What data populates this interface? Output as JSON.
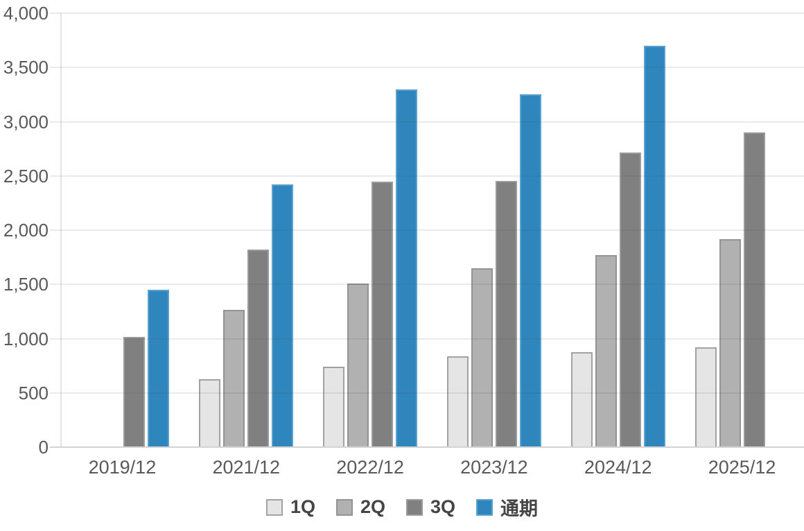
{
  "chart_data": {
    "type": "bar",
    "title": "",
    "xlabel": "",
    "ylabel": "",
    "categories": [
      "2019/12",
      "2021/12",
      "2022/12",
      "2023/12",
      "2024/12",
      "2025/12"
    ],
    "series": [
      {
        "key": "1q",
        "name": "1Q",
        "color": "#E5E5E5",
        "stroke": "#A2A2A2",
        "values": [
          null,
          625,
          740,
          835,
          875,
          920
        ]
      },
      {
        "key": "2q",
        "name": "2Q",
        "color": "#B1B1B1",
        "stroke": "#939393",
        "values": [
          null,
          1265,
          1510,
          1650,
          1770,
          1915
        ]
      },
      {
        "key": "3q",
        "name": "3Q",
        "color": "#808080",
        "stroke": "#9B9B9B",
        "values": [
          1015,
          1820,
          2450,
          2455,
          2715,
          2900
        ]
      },
      {
        "key": "fy",
        "name": "通期",
        "color": "#2F86BC",
        "stroke": "#5BA3CE",
        "values": [
          1450,
          2420,
          3300,
          3250,
          3700,
          null
        ]
      }
    ],
    "ylim": [
      0,
      4000
    ],
    "ytick_interval": 500,
    "ytick_labels": [
      "0",
      "500",
      "1,000",
      "1,500",
      "2,000",
      "2,500",
      "3,000",
      "3,500",
      "4,000"
    ],
    "grid": "horizontal",
    "legend_position": "bottom",
    "colors": {
      "background": "#ffffff",
      "gridline": "#e6e6e6",
      "axis_line": "#d4d4d4",
      "tick_label": "#595959",
      "legend_label": "#454545",
      "accent_blue": "#2F86BC"
    }
  }
}
